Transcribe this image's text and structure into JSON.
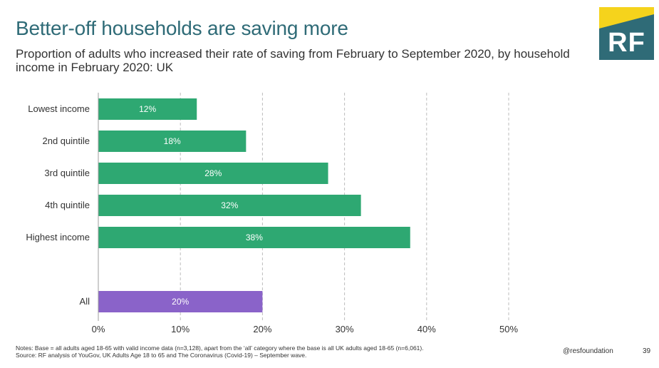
{
  "header": {
    "title": "Better-off households are saving more",
    "subtitle": "Proportion of adults who increased their rate of saving from February to September 2020, by household income in February 2020: UK"
  },
  "logo": {
    "text": "RF",
    "colors": {
      "yellow": "#f5d31c",
      "teal": "#2f6b77"
    }
  },
  "chart_data": {
    "type": "bar",
    "orientation": "horizontal",
    "categories": [
      "Lowest income",
      "2nd quintile",
      "3rd quintile",
      "4th quintile",
      "Highest income",
      "All"
    ],
    "values": [
      12,
      18,
      28,
      32,
      38,
      20
    ],
    "data_labels": [
      "12%",
      "18%",
      "28%",
      "32%",
      "38%",
      "20%"
    ],
    "bar_colors": [
      "#2ea872",
      "#2ea872",
      "#2ea872",
      "#2ea872",
      "#2ea872",
      "#8a63c9"
    ],
    "xlim": [
      0,
      50
    ],
    "xticks": [
      0,
      10,
      20,
      30,
      40,
      50
    ],
    "xtick_labels": [
      "0%",
      "10%",
      "20%",
      "30%",
      "40%",
      "50%"
    ],
    "grid": "vertical-dashed",
    "title": "",
    "xlabel": "",
    "ylabel": ""
  },
  "footer": {
    "notes": "Notes: Base = all adults aged 18-65 with valid income data (n=3,128), apart from the ‘all’ category where the base is all UK adults aged 18-65 (n=6,061).",
    "source": "Source: RF analysis of YouGov, UK Adults Age 18 to 65 and The Coronavirus (Covid-19) – September wave.",
    "handle": "@resfoundation",
    "page_number": "39"
  }
}
